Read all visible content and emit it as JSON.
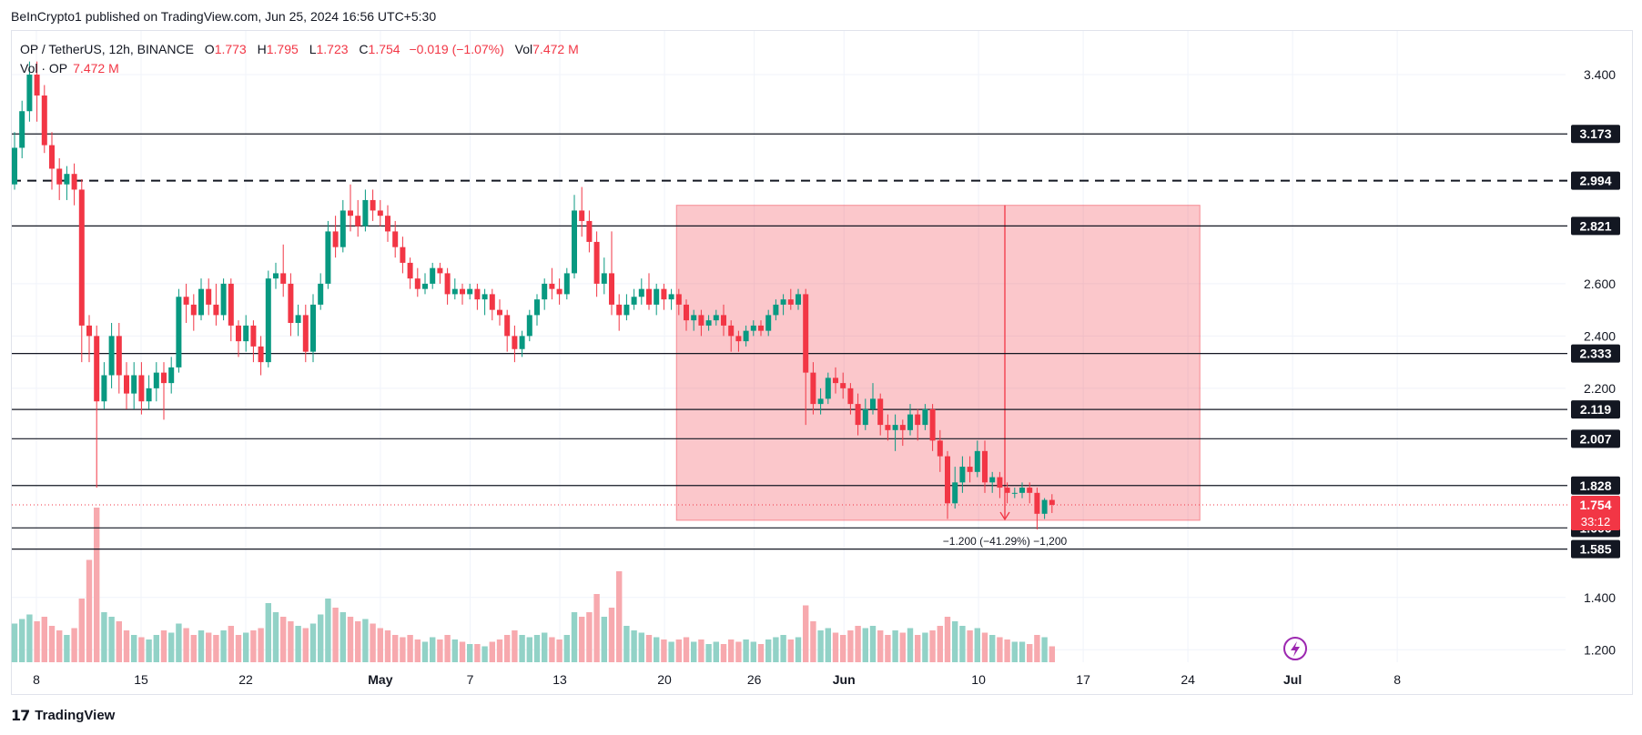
{
  "publisher_line": "BeInCrypto1 published on TradingView.com, Jun 25, 2024 16:56 UTC+5:30",
  "legend": {
    "symbol": "OP / TetherUS, 12h, BINANCE",
    "o_label": "O",
    "o_value": "1.773",
    "h_label": "H",
    "h_value": "1.795",
    "l_label": "L",
    "l_value": "1.723",
    "c_label": "C",
    "c_value": "1.754",
    "change": "−0.019 (−1.07%)",
    "vol_label": "Vol",
    "vol_value": "7.472 M"
  },
  "volume_legend": {
    "label": "Vol · OP",
    "value": "7.472 M"
  },
  "brand": {
    "logo": "17",
    "name": "TradingView"
  },
  "colors": {
    "up": "#089981",
    "down": "#f23645",
    "up_vol": "#92d2c7",
    "down_vol": "#f7a9ae",
    "range": "#f23645"
  },
  "chart_data": {
    "type": "candlestick",
    "interval": "12h",
    "ylim": [
      1.18,
      3.48
    ],
    "y_ticks": [
      "3.400",
      "2.600",
      "2.400",
      "2.200",
      "1.400",
      "1.200"
    ],
    "x_ticks": [
      "8",
      "15",
      "22",
      "May",
      "7",
      "13",
      "20",
      "26",
      "Jun",
      "10",
      "17",
      "24",
      "Jul",
      "8"
    ],
    "x_tick_days": [
      0,
      7,
      14,
      23,
      29,
      35,
      42,
      48,
      54,
      63,
      70,
      77,
      84,
      91
    ],
    "levels": [
      {
        "value": 3.173,
        "label": "3.173",
        "style": "solid"
      },
      {
        "value": 2.994,
        "label": "2.994",
        "style": "dashed"
      },
      {
        "value": 2.821,
        "label": "2.821",
        "style": "solid"
      },
      {
        "value": 2.333,
        "label": "2.333",
        "style": "solid"
      },
      {
        "value": 2.119,
        "label": "2.119",
        "style": "solid"
      },
      {
        "value": 2.007,
        "label": "2.007",
        "style": "solid"
      },
      {
        "value": 1.828,
        "label": "1.828",
        "style": "solid"
      },
      {
        "value": 1.666,
        "label": "1.666",
        "style": "solid"
      },
      {
        "value": 1.585,
        "label": "1.585",
        "style": "solid"
      }
    ],
    "current_price": {
      "value": 1.754,
      "label": "1.754",
      "countdown": "33:12"
    },
    "range_measure": {
      "top": 2.9,
      "bottom": 1.695,
      "start_day": 42.8,
      "end_day": 77.8,
      "label": "−1.200 (−41.29%) −1,200"
    },
    "candles": [
      [
        2.98,
        3.12,
        3.18,
        2.96,
        17
      ],
      [
        3.12,
        3.26,
        3.3,
        3.08,
        19
      ],
      [
        3.26,
        3.4,
        3.45,
        3.22,
        21
      ],
      [
        3.4,
        3.32,
        3.45,
        3.22,
        18
      ],
      [
        3.32,
        3.13,
        3.36,
        3.1,
        20
      ],
      [
        3.13,
        3.04,
        3.18,
        2.96,
        16
      ],
      [
        3.04,
        2.98,
        3.08,
        2.92,
        14
      ],
      [
        2.98,
        3.02,
        3.05,
        2.92,
        12
      ],
      [
        3.02,
        2.96,
        3.06,
        2.9,
        15
      ],
      [
        2.96,
        2.44,
        3.0,
        2.3,
        28
      ],
      [
        2.44,
        2.4,
        2.48,
        2.3,
        45
      ],
      [
        2.4,
        2.15,
        2.44,
        1.82,
        68
      ],
      [
        2.15,
        2.25,
        2.3,
        2.12,
        22
      ],
      [
        2.25,
        2.4,
        2.45,
        2.2,
        20
      ],
      [
        2.4,
        2.25,
        2.45,
        2.18,
        18
      ],
      [
        2.25,
        2.18,
        2.3,
        2.12,
        14
      ],
      [
        2.18,
        2.25,
        2.3,
        2.12,
        12
      ],
      [
        2.25,
        2.15,
        2.3,
        2.1,
        11
      ],
      [
        2.15,
        2.2,
        2.25,
        2.12,
        10
      ],
      [
        2.2,
        2.26,
        2.3,
        2.15,
        12
      ],
      [
        2.26,
        2.22,
        2.3,
        2.08,
        14
      ],
      [
        2.22,
        2.28,
        2.32,
        2.18,
        13
      ],
      [
        2.28,
        2.55,
        2.58,
        2.26,
        17
      ],
      [
        2.55,
        2.52,
        2.6,
        2.45,
        15
      ],
      [
        2.52,
        2.48,
        2.56,
        2.42,
        12
      ],
      [
        2.48,
        2.58,
        2.62,
        2.46,
        14
      ],
      [
        2.58,
        2.52,
        2.62,
        2.48,
        13
      ],
      [
        2.52,
        2.48,
        2.6,
        2.44,
        12
      ],
      [
        2.48,
        2.6,
        2.62,
        2.46,
        14
      ],
      [
        2.6,
        2.44,
        2.62,
        2.38,
        16
      ],
      [
        2.44,
        2.38,
        2.46,
        2.32,
        12
      ],
      [
        2.38,
        2.44,
        2.48,
        2.34,
        13
      ],
      [
        2.44,
        2.36,
        2.46,
        2.3,
        14
      ],
      [
        2.36,
        2.3,
        2.4,
        2.25,
        15
      ],
      [
        2.3,
        2.62,
        2.65,
        2.28,
        26
      ],
      [
        2.62,
        2.64,
        2.68,
        2.58,
        22
      ],
      [
        2.64,
        2.6,
        2.75,
        2.55,
        20
      ],
      [
        2.6,
        2.45,
        2.64,
        2.4,
        18
      ],
      [
        2.45,
        2.48,
        2.52,
        2.4,
        16
      ],
      [
        2.48,
        2.34,
        2.52,
        2.3,
        15
      ],
      [
        2.34,
        2.52,
        2.56,
        2.3,
        17
      ],
      [
        2.52,
        2.6,
        2.64,
        2.5,
        21
      ],
      [
        2.6,
        2.8,
        2.84,
        2.58,
        28
      ],
      [
        2.8,
        2.74,
        2.86,
        2.7,
        24
      ],
      [
        2.74,
        2.88,
        2.92,
        2.72,
        22
      ],
      [
        2.88,
        2.86,
        2.98,
        2.8,
        20
      ],
      [
        2.86,
        2.82,
        2.92,
        2.78,
        18
      ],
      [
        2.82,
        2.92,
        2.96,
        2.8,
        19
      ],
      [
        2.92,
        2.88,
        2.96,
        2.84,
        17
      ],
      [
        2.88,
        2.86,
        2.92,
        2.82,
        15
      ],
      [
        2.86,
        2.8,
        2.9,
        2.76,
        14
      ],
      [
        2.8,
        2.74,
        2.84,
        2.7,
        12
      ],
      [
        2.74,
        2.68,
        2.78,
        2.64,
        11
      ],
      [
        2.68,
        2.62,
        2.7,
        2.58,
        12
      ],
      [
        2.62,
        2.58,
        2.66,
        2.55,
        10
      ],
      [
        2.58,
        2.6,
        2.64,
        2.56,
        9
      ],
      [
        2.6,
        2.66,
        2.68,
        2.58,
        11
      ],
      [
        2.66,
        2.64,
        2.68,
        2.6,
        10
      ],
      [
        2.64,
        2.56,
        2.66,
        2.52,
        12
      ],
      [
        2.56,
        2.58,
        2.62,
        2.54,
        10
      ],
      [
        2.58,
        2.56,
        2.6,
        2.52,
        9
      ],
      [
        2.56,
        2.58,
        2.6,
        2.54,
        8
      ],
      [
        2.58,
        2.54,
        2.6,
        2.5,
        8
      ],
      [
        2.54,
        2.56,
        2.58,
        2.48,
        7
      ],
      [
        2.56,
        2.5,
        2.58,
        2.46,
        9
      ],
      [
        2.5,
        2.48,
        2.54,
        2.44,
        10
      ],
      [
        2.48,
        2.4,
        2.5,
        2.34,
        12
      ],
      [
        2.4,
        2.35,
        2.44,
        2.3,
        14
      ],
      [
        2.35,
        2.4,
        2.42,
        2.32,
        12
      ],
      [
        2.4,
        2.48,
        2.5,
        2.38,
        11
      ],
      [
        2.48,
        2.54,
        2.56,
        2.44,
        12
      ],
      [
        2.54,
        2.6,
        2.62,
        2.5,
        13
      ],
      [
        2.6,
        2.58,
        2.66,
        2.54,
        11
      ],
      [
        2.58,
        2.56,
        2.62,
        2.52,
        10
      ],
      [
        2.56,
        2.64,
        2.66,
        2.54,
        12
      ],
      [
        2.64,
        2.88,
        2.94,
        2.62,
        22
      ],
      [
        2.88,
        2.84,
        2.97,
        2.78,
        20
      ],
      [
        2.84,
        2.76,
        2.88,
        2.72,
        22
      ],
      [
        2.76,
        2.6,
        2.8,
        2.55,
        30
      ],
      [
        2.6,
        2.64,
        2.7,
        2.56,
        20
      ],
      [
        2.64,
        2.52,
        2.8,
        2.48,
        24
      ],
      [
        2.52,
        2.48,
        2.56,
        2.42,
        40
      ],
      [
        2.48,
        2.52,
        2.56,
        2.46,
        16
      ],
      [
        2.52,
        2.55,
        2.58,
        2.5,
        14
      ],
      [
        2.55,
        2.58,
        2.62,
        2.52,
        13
      ],
      [
        2.58,
        2.52,
        2.64,
        2.5,
        12
      ],
      [
        2.52,
        2.58,
        2.6,
        2.48,
        11
      ],
      [
        2.58,
        2.54,
        2.6,
        2.5,
        10
      ],
      [
        2.54,
        2.56,
        2.58,
        2.5,
        9
      ],
      [
        2.56,
        2.52,
        2.58,
        2.48,
        10
      ],
      [
        2.52,
        2.46,
        2.54,
        2.42,
        11
      ],
      [
        2.46,
        2.48,
        2.5,
        2.42,
        9
      ],
      [
        2.48,
        2.44,
        2.5,
        2.4,
        10
      ],
      [
        2.44,
        2.46,
        2.48,
        2.42,
        8
      ],
      [
        2.46,
        2.48,
        2.5,
        2.44,
        9
      ],
      [
        2.48,
        2.44,
        2.52,
        2.4,
        8
      ],
      [
        2.44,
        2.4,
        2.46,
        2.34,
        10
      ],
      [
        2.4,
        2.38,
        2.42,
        2.34,
        9
      ],
      [
        2.38,
        2.42,
        2.44,
        2.36,
        10
      ],
      [
        2.42,
        2.44,
        2.46,
        2.4,
        9
      ],
      [
        2.44,
        2.42,
        2.46,
        2.4,
        8
      ],
      [
        2.42,
        2.48,
        2.5,
        2.4,
        10
      ],
      [
        2.48,
        2.52,
        2.54,
        2.46,
        11
      ],
      [
        2.52,
        2.54,
        2.56,
        2.48,
        12
      ],
      [
        2.54,
        2.52,
        2.58,
        2.5,
        10
      ],
      [
        2.52,
        2.56,
        2.58,
        2.5,
        11
      ],
      [
        2.56,
        2.26,
        2.58,
        2.06,
        25
      ],
      [
        2.26,
        2.14,
        2.3,
        2.1,
        18
      ],
      [
        2.14,
        2.16,
        2.2,
        2.1,
        14
      ],
      [
        2.16,
        2.24,
        2.26,
        2.14,
        15
      ],
      [
        2.24,
        2.22,
        2.28,
        2.18,
        13
      ],
      [
        2.22,
        2.2,
        2.26,
        2.16,
        12
      ],
      [
        2.2,
        2.14,
        2.22,
        2.1,
        14
      ],
      [
        2.14,
        2.06,
        2.18,
        2.02,
        16
      ],
      [
        2.06,
        2.12,
        2.16,
        2.04,
        15
      ],
      [
        2.12,
        2.16,
        2.22,
        2.1,
        16
      ],
      [
        2.16,
        2.06,
        2.18,
        2.02,
        14
      ],
      [
        2.06,
        2.04,
        2.1,
        2.0,
        12
      ],
      [
        2.04,
        2.06,
        2.1,
        1.96,
        14
      ],
      [
        2.06,
        2.04,
        2.08,
        1.98,
        13
      ],
      [
        2.04,
        2.1,
        2.14,
        2.02,
        15
      ],
      [
        2.1,
        2.06,
        2.12,
        2.0,
        12
      ],
      [
        2.06,
        2.12,
        2.14,
        2.04,
        13
      ],
      [
        2.12,
        2.0,
        2.14,
        1.96,
        14
      ],
      [
        2.0,
        1.94,
        2.04,
        1.88,
        16
      ],
      [
        1.94,
        1.76,
        1.96,
        1.7,
        20
      ],
      [
        1.76,
        1.84,
        1.9,
        1.74,
        18
      ],
      [
        1.84,
        1.9,
        1.94,
        1.8,
        16
      ],
      [
        1.9,
        1.88,
        1.94,
        1.84,
        14
      ],
      [
        1.88,
        1.96,
        2.0,
        1.86,
        15
      ],
      [
        1.96,
        1.84,
        2.0,
        1.8,
        13
      ],
      [
        1.84,
        1.86,
        1.88,
        1.8,
        12
      ],
      [
        1.86,
        1.82,
        1.88,
        1.78,
        11
      ],
      [
        1.82,
        1.8,
        1.84,
        1.76,
        10
      ],
      [
        1.8,
        1.8,
        1.82,
        1.78,
        9
      ],
      [
        1.8,
        1.82,
        1.84,
        1.78,
        9
      ],
      [
        1.82,
        1.8,
        1.84,
        1.76,
        8
      ],
      [
        1.8,
        1.72,
        1.82,
        1.66,
        12
      ],
      [
        1.72,
        1.773,
        1.78,
        1.7,
        11
      ],
      [
        1.773,
        1.754,
        1.795,
        1.723,
        7
      ]
    ]
  }
}
